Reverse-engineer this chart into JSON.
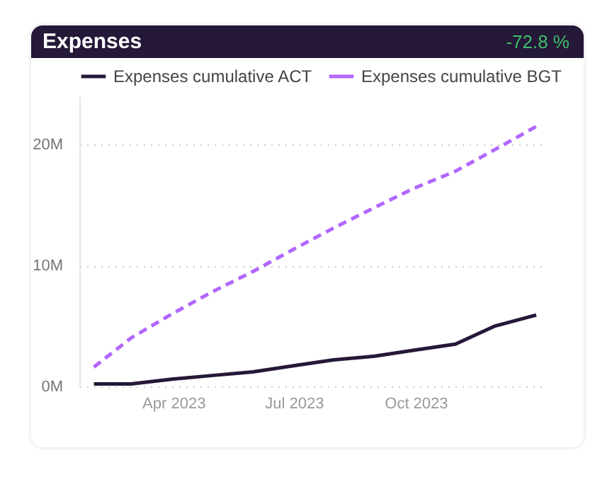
{
  "chart_data": {
    "type": "line",
    "title": "Expenses",
    "annotations": [
      "-72.8 %"
    ],
    "x": [
      "2023-01-31",
      "2023-02-28",
      "2023-03-31",
      "2023-04-30",
      "2023-05-31",
      "2023-06-30",
      "2023-07-31",
      "2023-08-31",
      "2023-09-30",
      "2023-10-31",
      "2023-11-30",
      "2023-12-31"
    ],
    "series": [
      {
        "name": "Expenses cumulative ACT",
        "color": "#251838",
        "line_style": "solid",
        "values": [
          0.2,
          0.2,
          0.6,
          0.9,
          1.2,
          1.7,
          2.2,
          2.5,
          3.0,
          3.5,
          5.0,
          5.9
        ]
      },
      {
        "name": "Expenses cumulative BGT",
        "color": "#b266ff",
        "line_style": "dashed",
        "values": [
          1.6,
          4.0,
          6.0,
          7.8,
          9.5,
          11.3,
          13.1,
          14.8,
          16.4,
          17.8,
          19.6,
          21.5
        ]
      }
    ],
    "xlim": [
      "2023-01-20",
      "2024-01-08"
    ],
    "xticks": [
      {
        "value": "2023-04-01",
        "label": "Apr 2023"
      },
      {
        "value": "2023-07-01",
        "label": "Jul 2023"
      },
      {
        "value": "2023-10-01",
        "label": "Oct 2023"
      }
    ],
    "ylim": [
      0,
      24
    ],
    "yticks": [
      {
        "value": 0,
        "label": "0M"
      },
      {
        "value": 10,
        "label": "10M"
      },
      {
        "value": 20,
        "label": "20M"
      }
    ],
    "grid": "y",
    "legend": "top left",
    "marker": "none"
  }
}
